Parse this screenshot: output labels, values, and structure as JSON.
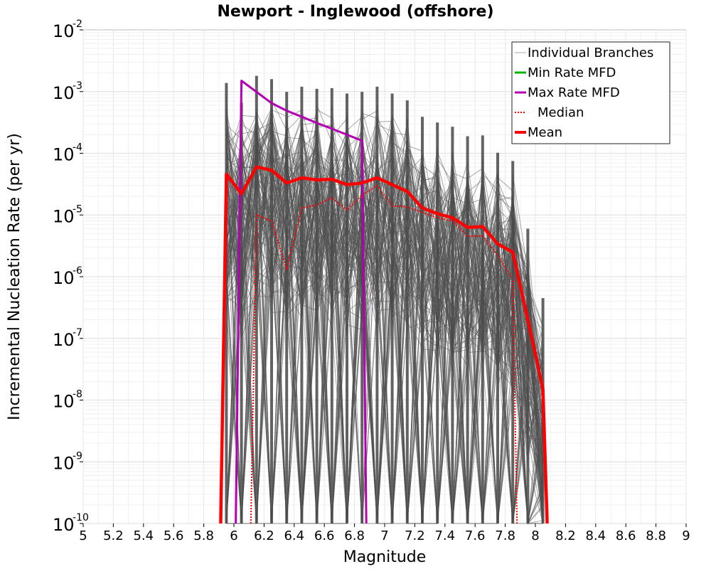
{
  "chart_data": {
    "type": "line",
    "title": "Newport - Inglewood (offshore)",
    "xlabel": "Magnitude",
    "ylabel": "Incremental Nucleation Rate (per yr)",
    "xlim": [
      5,
      9
    ],
    "ylim_log10": [
      -10,
      -2
    ],
    "y_scale": "log",
    "grid": true,
    "x_ticks": [
      "5",
      "5.2",
      "5.4",
      "5.6",
      "5.8",
      "6",
      "6.2",
      "6.4",
      "6.6",
      "6.8",
      "7",
      "7.2",
      "7.4",
      "7.6",
      "7.8",
      "8",
      "8.2",
      "8.4",
      "8.6",
      "8.8",
      "9"
    ],
    "y_tick_exponents": [
      "-10",
      "-9",
      "-8",
      "-7",
      "-6",
      "-5",
      "-4",
      "-3",
      "-2"
    ],
    "y_tick_base": "10",
    "legend": {
      "placement": "top-right",
      "entries": [
        {
          "label": "Individual Branches",
          "color": "#aaaaaa",
          "style": "thin"
        },
        {
          "label": "Min Rate MFD",
          "color": "#00b400",
          "style": "solid"
        },
        {
          "label": "Max Rate MFD",
          "color": "#b400b4",
          "style": "solid"
        },
        {
          "label": "Median",
          "color": "#ff0000",
          "style": "dotted"
        },
        {
          "label": "Mean",
          "color": "#ff0000",
          "style": "thick"
        }
      ]
    },
    "series": [
      {
        "name": "Mean",
        "color": "#ff0000",
        "x": [
          5.95,
          6.05,
          6.15,
          6.25,
          6.35,
          6.45,
          6.55,
          6.65,
          6.75,
          6.85,
          6.95,
          7.05,
          7.15,
          7.25,
          7.35,
          7.45,
          7.55,
          7.65,
          7.75,
          7.85,
          7.95,
          8.05
        ],
        "y": [
          4.6e-05,
          2.2e-05,
          6e-05,
          5.3e-05,
          3.3e-05,
          4e-05,
          3.7e-05,
          3.8e-05,
          3.1e-05,
          3.3e-05,
          4e-05,
          3.1e-05,
          2.4e-05,
          1.3e-05,
          1.05e-05,
          9e-06,
          6.3e-06,
          6.5e-06,
          3.4e-06,
          2.5e-06,
          2e-07,
          1.5e-08
        ]
      },
      {
        "name": "Median",
        "color": "#ff0000",
        "x": [
          6.15,
          6.25,
          6.35,
          6.45,
          6.55,
          6.65,
          6.75,
          6.85,
          6.95,
          7.05,
          7.15,
          7.25,
          7.35,
          7.45,
          7.55,
          7.65,
          7.75,
          7.85
        ],
        "y": [
          1e-05,
          8e-06,
          1.3e-06,
          1.3e-05,
          1.45e-05,
          1.9e-05,
          1.2e-05,
          2.1e-05,
          3e-05,
          1.4e-05,
          1.35e-05,
          1.1e-05,
          9e-06,
          8e-06,
          4.5e-06,
          4.6e-06,
          2.2e-06,
          9e-07
        ]
      },
      {
        "name": "Max Rate MFD",
        "color": "#b400b4",
        "x": [
          6.05,
          6.25,
          6.35,
          6.45,
          6.55,
          6.65,
          6.75,
          6.85
        ],
        "y": [
          0.0015,
          0.00065,
          0.00049,
          0.00039,
          0.00031,
          0.00025,
          0.0002,
          0.00016
        ]
      }
    ]
  }
}
